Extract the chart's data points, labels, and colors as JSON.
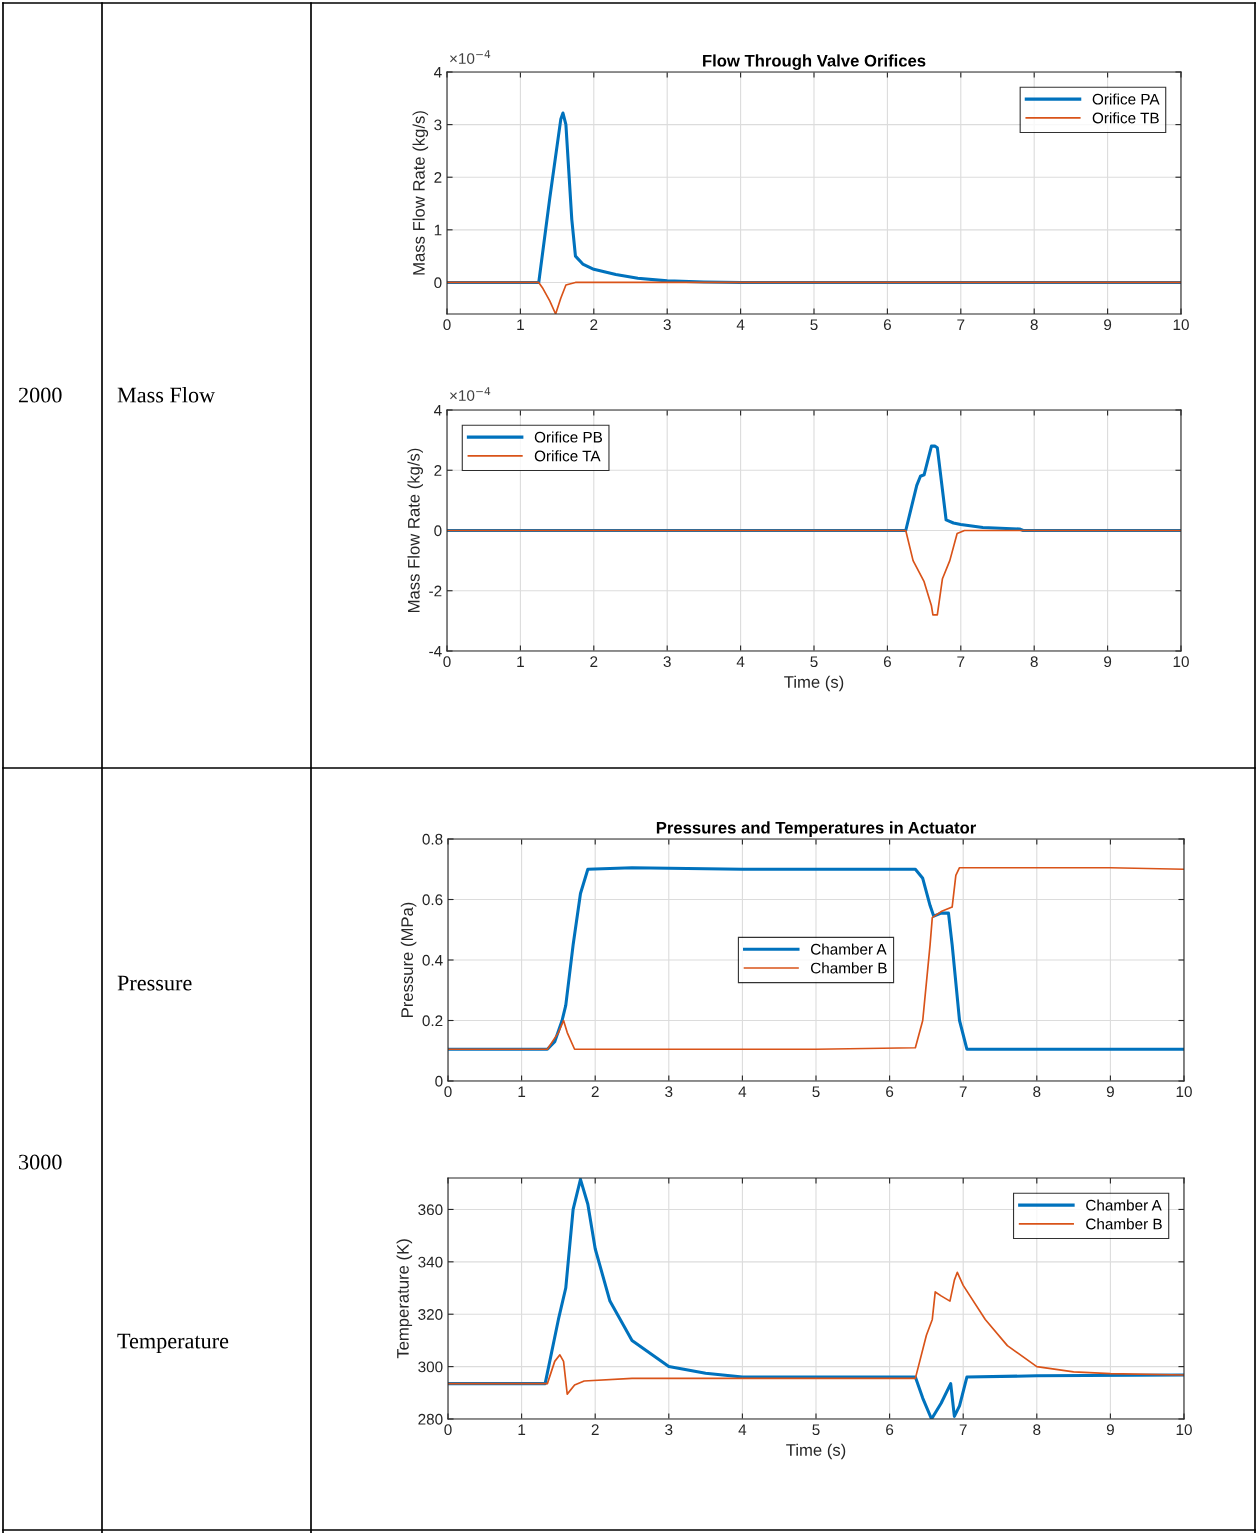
{
  "chart_data": [
    {
      "type": "line",
      "title": "Flow Through Valve Orifices",
      "ylabel": "Mass Flow Rate (kg/s)",
      "annotations": [
        "×10$^{−4}$",
        "2000",
        "Mass Flow"
      ],
      "xlim": [
        0,
        10
      ],
      "xticks": [
        0,
        1,
        2,
        3,
        4,
        5,
        6,
        7,
        8,
        9,
        10
      ],
      "ylim": [
        -0.6,
        4
      ],
      "yticks": [
        0,
        1,
        2,
        3,
        4
      ],
      "grid": true,
      "legend": "top right",
      "series": [
        {
          "name": "Orifice PA",
          "color": "#0072bd",
          "x": [
            0,
            1.25,
            1.4,
            1.55,
            1.58,
            1.62,
            1.7,
            1.75,
            1.85,
            2.0,
            2.3,
            2.6,
            3.0,
            3.5,
            4,
            10
          ],
          "values": [
            0,
            0,
            1.6,
            3.1,
            3.22,
            3.0,
            1.2,
            0.5,
            0.35,
            0.25,
            0.15,
            0.08,
            0.03,
            0.01,
            0,
            0
          ]
        },
        {
          "name": "Orifice TB",
          "color": "#d95319",
          "x": [
            0,
            1.25,
            1.3,
            1.4,
            1.48,
            1.55,
            1.62,
            1.75,
            10
          ],
          "values": [
            0,
            0,
            -0.1,
            -0.35,
            -0.6,
            -0.3,
            -0.05,
            0,
            0
          ]
        }
      ]
    },
    {
      "type": "line",
      "xlabel": "Time (s)",
      "ylabel": "Mass Flow Rate (kg/s)",
      "annotations": [
        "×10$^{−4}$"
      ],
      "xlim": [
        0,
        10
      ],
      "xticks": [
        0,
        1,
        2,
        3,
        4,
        5,
        6,
        7,
        8,
        9,
        10
      ],
      "ylim": [
        -4,
        4
      ],
      "yticks": [
        -4,
        -2,
        0,
        2,
        4
      ],
      "grid": true,
      "legend": "top left",
      "series": [
        {
          "name": "Orifice PB",
          "color": "#0072bd",
          "x": [
            0,
            6.25,
            6.4,
            6.45,
            6.5,
            6.6,
            6.65,
            6.68,
            6.8,
            6.9,
            7.0,
            7.3,
            7.8,
            7.85,
            10
          ],
          "values": [
            0,
            0,
            1.5,
            1.8,
            1.85,
            2.8,
            2.8,
            2.75,
            0.35,
            0.25,
            0.2,
            0.1,
            0.05,
            0,
            0
          ]
        },
        {
          "name": "Orifice TA",
          "color": "#d95319",
          "x": [
            0,
            6.25,
            6.35,
            6.5,
            6.6,
            6.62,
            6.68,
            6.75,
            6.85,
            6.95,
            7.05,
            10
          ],
          "values": [
            0,
            0,
            -1,
            -1.7,
            -2.5,
            -2.8,
            -2.8,
            -1.6,
            -1.0,
            -0.1,
            0,
            0
          ]
        }
      ]
    },
    {
      "type": "line",
      "title": "Pressures and Temperatures in Actuator",
      "ylabel": "Pressure (MPa)",
      "annotations": [
        "3000",
        "Pressure"
      ],
      "xlim": [
        0,
        10
      ],
      "xticks": [
        0,
        1,
        2,
        3,
        4,
        5,
        6,
        7,
        8,
        9,
        10
      ],
      "ylim": [
        0,
        0.8
      ],
      "yticks": [
        0,
        0.2,
        0.4,
        0.6,
        0.8
      ],
      "grid": true,
      "legend": "center",
      "series": [
        {
          "name": "Chamber A",
          "color": "#0072bd",
          "x": [
            0,
            1.35,
            1.45,
            1.55,
            1.6,
            1.7,
            1.8,
            1.9,
            2.5,
            4,
            6.35,
            6.45,
            6.55,
            6.6,
            6.7,
            6.8,
            6.85,
            6.95,
            7.05,
            10
          ],
          "values": [
            0.105,
            0.105,
            0.13,
            0.2,
            0.25,
            0.45,
            0.62,
            0.7,
            0.705,
            0.7,
            0.7,
            0.67,
            0.58,
            0.545,
            0.555,
            0.555,
            0.45,
            0.2,
            0.105,
            0.105
          ]
        },
        {
          "name": "Chamber B",
          "color": "#d95319",
          "x": [
            0,
            1.35,
            1.5,
            1.57,
            1.62,
            1.72,
            5,
            6.35,
            6.45,
            6.55,
            6.58,
            6.7,
            6.85,
            6.9,
            6.95,
            9,
            10
          ],
          "values": [
            0.105,
            0.105,
            0.16,
            0.2,
            0.16,
            0.105,
            0.105,
            0.11,
            0.2,
            0.45,
            0.54,
            0.56,
            0.575,
            0.68,
            0.705,
            0.705,
            0.7
          ]
        }
      ]
    },
    {
      "type": "line",
      "xlabel": "Time (s)",
      "ylabel": "Temperature (K)",
      "annotations": [
        "Temperature"
      ],
      "xlim": [
        0,
        10
      ],
      "xticks": [
        0,
        1,
        2,
        3,
        4,
        5,
        6,
        7,
        8,
        9,
        10
      ],
      "ylim": [
        280,
        372
      ],
      "yticks": [
        280,
        300,
        320,
        340,
        360
      ],
      "grid": true,
      "legend": "top right",
      "series": [
        {
          "name": "Chamber A",
          "color": "#0072bd",
          "x": [
            0,
            1.32,
            1.5,
            1.6,
            1.7,
            1.8,
            1.9,
            2.0,
            2.2,
            2.5,
            3.0,
            3.5,
            4,
            6.35,
            6.45,
            6.57,
            6.7,
            6.83,
            6.88,
            6.95,
            7.05,
            8,
            10
          ],
          "values": [
            293.5,
            293.5,
            318,
            330,
            360,
            371.5,
            362,
            345,
            325,
            310,
            300,
            297.5,
            296,
            296,
            288,
            280,
            286,
            293.5,
            281,
            285,
            296,
            296.5,
            296.8
          ]
        },
        {
          "name": "Chamber B",
          "color": "#d95319",
          "x": [
            0,
            1.35,
            1.45,
            1.52,
            1.57,
            1.62,
            1.72,
            1.85,
            2.5,
            6.35,
            6.5,
            6.58,
            6.62,
            6.7,
            6.82,
            6.88,
            6.92,
            7.0,
            7.3,
            7.6,
            8.0,
            8.5,
            9,
            10
          ],
          "values": [
            293.5,
            293.5,
            302,
            304.5,
            302,
            289.5,
            293,
            294.5,
            295.5,
            295.5,
            312,
            318,
            328.5,
            327,
            325,
            333,
            336,
            331,
            318,
            308,
            300,
            298,
            297.3,
            296.8
          ]
        }
      ]
    }
  ]
}
